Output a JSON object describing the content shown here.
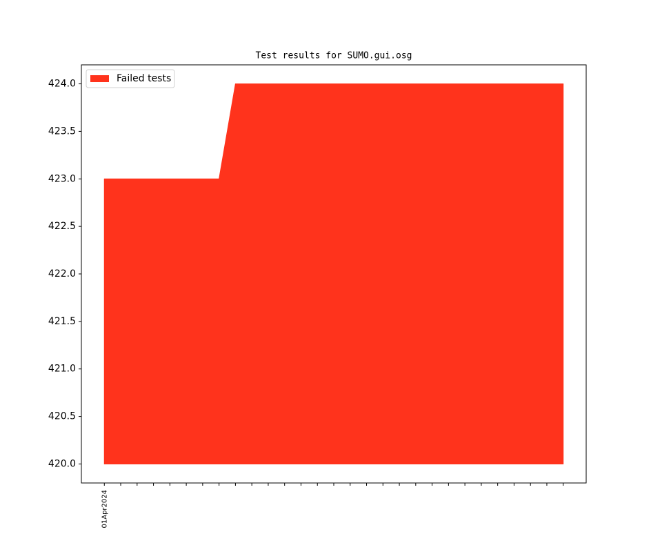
{
  "chart_data": {
    "type": "area",
    "title": "Test results for SUMO.gui.osg",
    "categories": [
      "01Apr2024",
      null,
      null,
      null,
      null,
      null,
      null,
      null,
      null,
      null,
      null,
      null,
      null,
      null,
      null,
      null,
      null,
      null,
      null,
      null,
      null,
      null,
      null,
      null,
      null,
      null,
      null,
      null,
      null
    ],
    "series": [
      {
        "name": "Failed tests",
        "color": "#ff331c",
        "values": [
          423,
          423,
          423,
          423,
          423,
          423,
          423,
          423,
          424,
          424,
          424,
          424,
          424,
          424,
          424,
          424,
          424,
          424,
          424,
          424,
          424,
          424,
          424,
          424,
          424,
          424,
          424,
          424,
          424
        ]
      }
    ],
    "fill_to": 420,
    "ylim": [
      419.8,
      424.2
    ],
    "yticks": [
      {
        "value": 420,
        "label": "420.0"
      },
      {
        "value": 420.5,
        "label": "420.5"
      },
      {
        "value": 421,
        "label": "421.0"
      },
      {
        "value": 421.5,
        "label": "421.5"
      },
      {
        "value": 422,
        "label": "422.0"
      },
      {
        "value": 422.5,
        "label": "422.5"
      },
      {
        "value": 423,
        "label": "423.0"
      },
      {
        "value": 423.5,
        "label": "423.5"
      },
      {
        "value": 424,
        "label": "424.0"
      }
    ],
    "legend": "upper left",
    "grid": false
  }
}
